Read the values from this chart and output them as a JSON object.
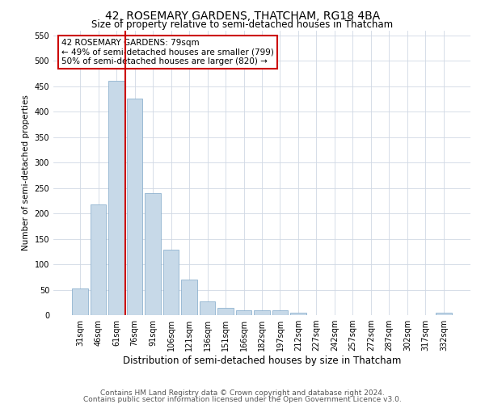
{
  "title": "42, ROSEMARY GARDENS, THATCHAM, RG18 4BA",
  "subtitle": "Size of property relative to semi-detached houses in Thatcham",
  "xlabel": "Distribution of semi-detached houses by size in Thatcham",
  "ylabel": "Number of semi-detached properties",
  "categories": [
    "31sqm",
    "46sqm",
    "61sqm",
    "76sqm",
    "91sqm",
    "106sqm",
    "121sqm",
    "136sqm",
    "151sqm",
    "166sqm",
    "182sqm",
    "197sqm",
    "212sqm",
    "227sqm",
    "242sqm",
    "257sqm",
    "272sqm",
    "287sqm",
    "302sqm",
    "317sqm",
    "332sqm"
  ],
  "values": [
    52,
    218,
    460,
    425,
    240,
    128,
    70,
    27,
    15,
    10,
    10,
    10,
    5,
    0,
    0,
    0,
    0,
    0,
    0,
    0,
    5
  ],
  "bar_color": "#c7d9e8",
  "bar_edge_color": "#7fa8c9",
  "red_line_x": 2.5,
  "red_line_color": "#cc0000",
  "annotation_line1": "42 ROSEMARY GARDENS: 79sqm",
  "annotation_line2": "← 49% of semi-detached houses are smaller (799)",
  "annotation_line3": "50% of semi-detached houses are larger (820) →",
  "annotation_box_color": "#ffffff",
  "annotation_box_edge_color": "#cc0000",
  "ylim": [
    0,
    560
  ],
  "yticks": [
    0,
    50,
    100,
    150,
    200,
    250,
    300,
    350,
    400,
    450,
    500,
    550
  ],
  "footer_line1": "Contains HM Land Registry data © Crown copyright and database right 2024.",
  "footer_line2": "Contains public sector information licensed under the Open Government Licence v3.0.",
  "background_color": "#ffffff",
  "grid_color": "#d0d8e4",
  "title_fontsize": 10,
  "subtitle_fontsize": 8.5,
  "tick_fontsize": 7,
  "ylabel_fontsize": 7.5,
  "xlabel_fontsize": 8.5,
  "annotation_fontsize": 7.5,
  "footer_fontsize": 6.5
}
